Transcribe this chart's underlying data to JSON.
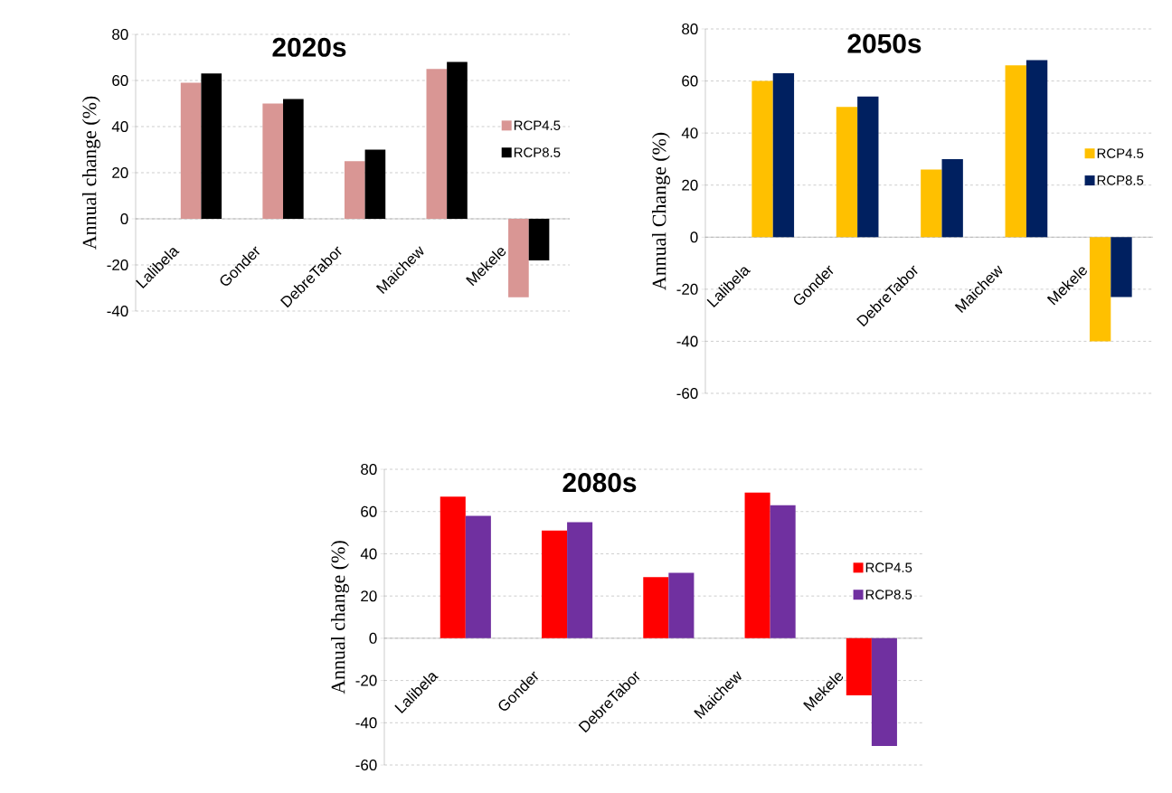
{
  "chart_data": [
    {
      "type": "bar",
      "title": "2020s",
      "ylabel": "Annual change (%)",
      "categories": [
        "Lalibela",
        "Gonder",
        "DebreTabor",
        "Maichew",
        "Mekele"
      ],
      "series": [
        {
          "name": "RCP4.5",
          "color": "#d99694",
          "values": [
            59,
            50,
            25,
            65,
            -34
          ]
        },
        {
          "name": "RCP8.5",
          "color": "#000000",
          "values": [
            63,
            52,
            30,
            68,
            -18
          ]
        }
      ],
      "ylim": [
        -40,
        80
      ],
      "yticks": [
        -40,
        -20,
        0,
        20,
        40,
        60,
        80
      ],
      "grid": "y",
      "legend": "right"
    },
    {
      "type": "bar",
      "title": "2050s",
      "ylabel": "Annual Change (%)",
      "categories": [
        "Lalibela",
        "Gonder",
        "DebreTabor",
        "Maichew",
        "Mekele"
      ],
      "series": [
        {
          "name": "RCP4.5",
          "color": "#ffc000",
          "values": [
            60,
            50,
            26,
            66,
            -40
          ]
        },
        {
          "name": "RCP8.5",
          "color": "#002060",
          "values": [
            63,
            54,
            30,
            68,
            -23
          ]
        }
      ],
      "ylim": [
        -60,
        80
      ],
      "yticks": [
        -60,
        -40,
        -20,
        0,
        20,
        40,
        60,
        80
      ],
      "grid": "y",
      "legend": "right"
    },
    {
      "type": "bar",
      "title": "2080s",
      "ylabel": "Annual change (%)",
      "categories": [
        "Lalibela",
        "Gonder",
        "DebreTabor",
        "Maichew",
        "Mekele"
      ],
      "series": [
        {
          "name": "RCP4.5",
          "color": "#ff0000",
          "values": [
            67,
            51,
            29,
            69,
            -27
          ]
        },
        {
          "name": "RCP8.5",
          "color": "#7030a0",
          "values": [
            58,
            55,
            31,
            63,
            -51
          ]
        }
      ],
      "ylim": [
        -60,
        80
      ],
      "yticks": [
        -60,
        -40,
        -20,
        0,
        20,
        40,
        60,
        80
      ],
      "grid": "y",
      "legend": "right"
    }
  ]
}
